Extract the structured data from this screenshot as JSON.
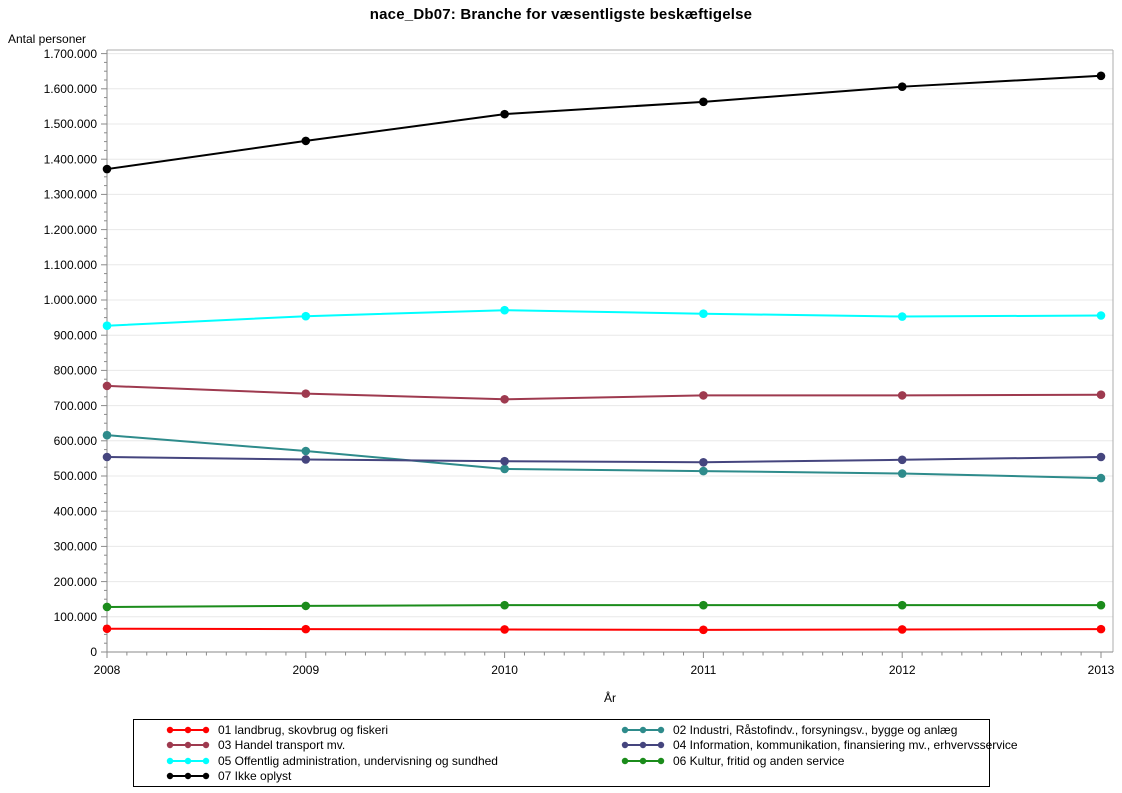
{
  "page": {
    "background": "#FFFFFF"
  },
  "chart_data": {
    "type": "line",
    "title": "nace_Db07: Branche for væsentligste beskæftigelse",
    "xlabel": "År",
    "ylabel": "Antal personer",
    "x": [
      2008,
      2009,
      2010,
      2011,
      2012,
      2013
    ],
    "ylim": [
      0,
      1700000
    ],
    "y_major_step": 100000,
    "y_minor_step": 25000,
    "x_minor_divisions": 10,
    "grid": "horizontal-major",
    "legend_position": "bottom-boxed-2-columns",
    "y_tick_labels": [
      "0",
      "100.000",
      "200.000",
      "300.000",
      "400.000",
      "500.000",
      "600.000",
      "700.000",
      "800.000",
      "900.000",
      "1.000.000",
      "1.100.000",
      "1.200.000",
      "1.300.000",
      "1.400.000",
      "1.500.000",
      "1.600.000",
      "1.700.000"
    ],
    "number_format": "danish-dot-thousands",
    "marker": "filled-circle",
    "series": [
      {
        "name": "01 landbrug, skovbrug og fiskeri",
        "color": "#FF0000",
        "values": [
          66000,
          65000,
          64000,
          63000,
          64000,
          65000
        ]
      },
      {
        "name": "02 Industri, Råstofindv., forsyningsv., bygge og anlæg",
        "color": "#2E8B8B",
        "values": [
          616000,
          571000,
          520000,
          514000,
          507000,
          494000
        ]
      },
      {
        "name": "03 Handel transport mv.",
        "color": "#9E3A4F",
        "values": [
          756000,
          734000,
          718000,
          729000,
          729000,
          731000
        ]
      },
      {
        "name": "04 Information, kommunikation, finansiering mv., erhvervsservice",
        "color": "#45457E",
        "values": [
          554000,
          547000,
          542000,
          539000,
          546000,
          554000
        ]
      },
      {
        "name": "05 Offentlig administration, undervisning og sundhed",
        "color": "#00FFFF",
        "values": [
          927000,
          954000,
          971000,
          961000,
          953000,
          956000
        ]
      },
      {
        "name": "06 Kultur, fritid og anden service",
        "color": "#1B8C1B",
        "values": [
          128000,
          131000,
          133000,
          133000,
          133000,
          133000
        ]
      },
      {
        "name": "07 Ikke oplyst",
        "color": "#000000",
        "values": [
          1372000,
          1452000,
          1528000,
          1563000,
          1606000,
          1637000
        ]
      }
    ],
    "style": {
      "grid_color": "#E8E8E8",
      "axis_color": "#8A8A8A",
      "frame_color": "#ADADAD",
      "legend_border_color": "#000000"
    }
  }
}
